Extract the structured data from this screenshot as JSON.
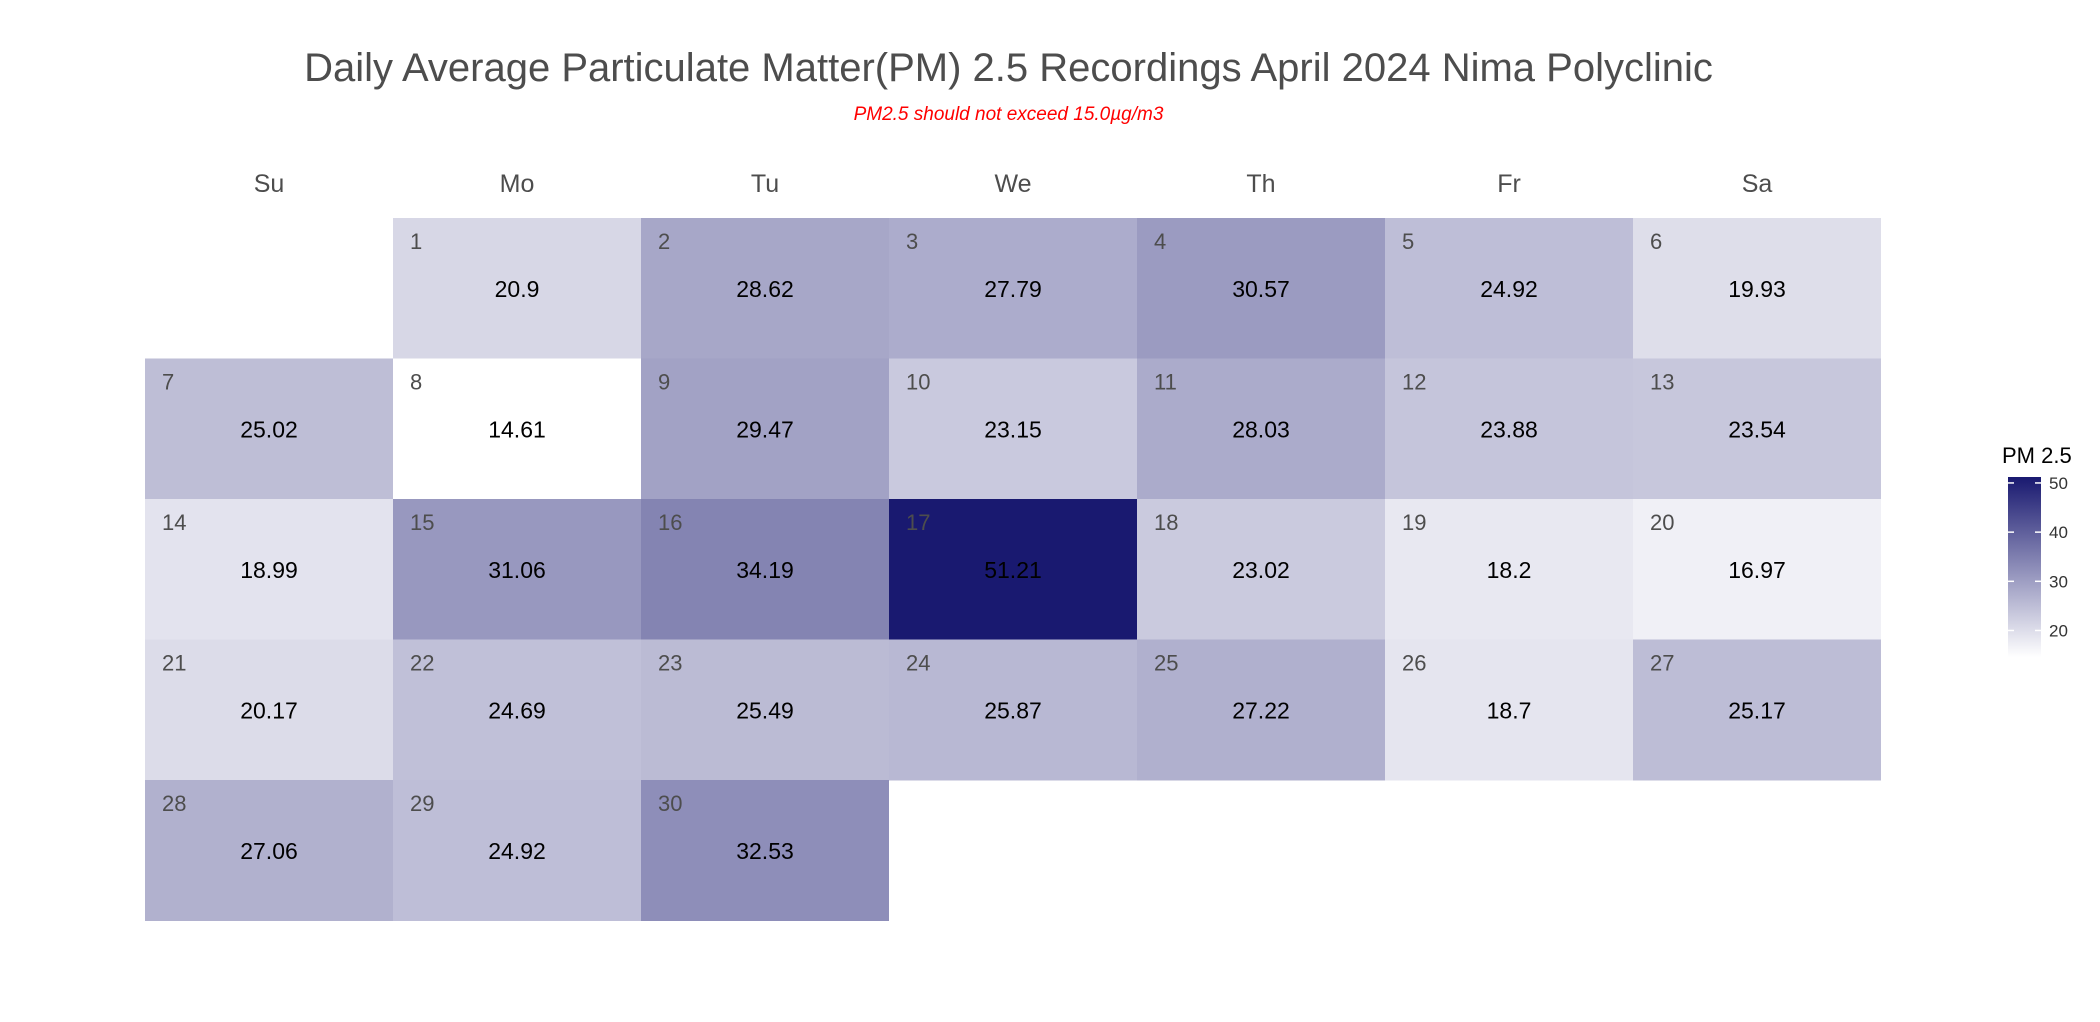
{
  "chart_data": {
    "type": "heatmap",
    "title": "Daily Average Particulate Matter(PM) 2.5 Recordings April 2024 Nima Polyclinic",
    "subtitle": "PM2.5 should not exceed 15.0µg/m3",
    "weekdays": [
      "Su",
      "Mo",
      "Tu",
      "We",
      "Th",
      "Fr",
      "Sa"
    ],
    "first_weekday_index": 1,
    "days": [
      1,
      2,
      3,
      4,
      5,
      6,
      7,
      8,
      9,
      10,
      11,
      12,
      13,
      14,
      15,
      16,
      17,
      18,
      19,
      20,
      21,
      22,
      23,
      24,
      25,
      26,
      27,
      28,
      29,
      30
    ],
    "values": [
      20.9,
      28.62,
      27.79,
      30.57,
      24.92,
      19.93,
      25.02,
      14.61,
      29.47,
      23.15,
      28.03,
      23.88,
      23.54,
      18.99,
      31.06,
      34.19,
      51.21,
      23.02,
      18.2,
      16.97,
      20.17,
      24.69,
      25.49,
      25.87,
      27.22,
      18.7,
      25.17,
      27.06,
      24.92,
      32.53
    ],
    "legend": {
      "title": "PM 2.5",
      "ticks": [
        20,
        30,
        40,
        50
      ],
      "position": "right",
      "low_color": "#ffffff",
      "high_color": "#191970"
    },
    "value_range": [
      14.61,
      51.21
    ],
    "grid": false
  }
}
